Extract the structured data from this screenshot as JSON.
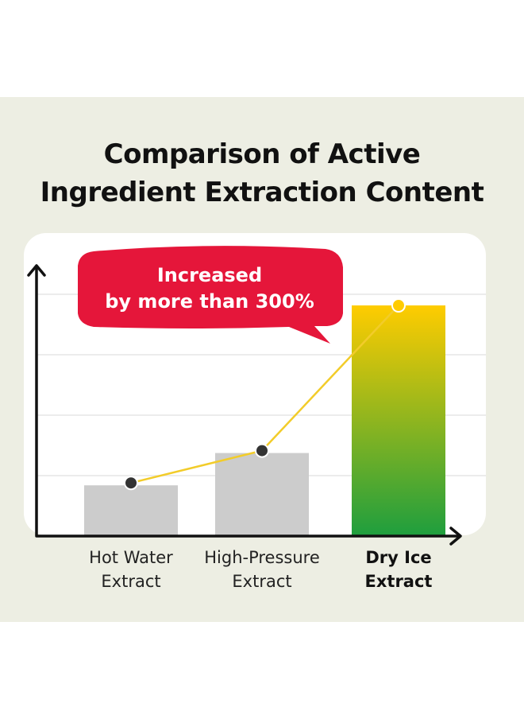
{
  "title": {
    "line1": "Comparison of Active",
    "line2": "Ingredient Extraction Content"
  },
  "callout": {
    "line1": "Increased",
    "line2": "by more than 300%"
  },
  "colors": {
    "panel_background": "#edeee3",
    "plot_background": "#ffffff",
    "baseline_bar": "#cccccc",
    "highlight_bar_top": "#ffcc00",
    "highlight_bar_bottom": "#1e9e3e",
    "trend_line": "#f2cc2a",
    "callout": "#e5163a"
  },
  "chart_data": {
    "type": "bar",
    "categories": [
      [
        "Hot Water",
        "Extract"
      ],
      [
        "High-Pressure",
        "Extract"
      ],
      [
        "Dry Ice",
        "Extract"
      ]
    ],
    "values": [
      22,
      36,
      100
    ],
    "highlight_index": 2,
    "trend_line": true,
    "y_axis_ticks": false,
    "grid": true,
    "ylim": [
      0,
      100
    ]
  }
}
